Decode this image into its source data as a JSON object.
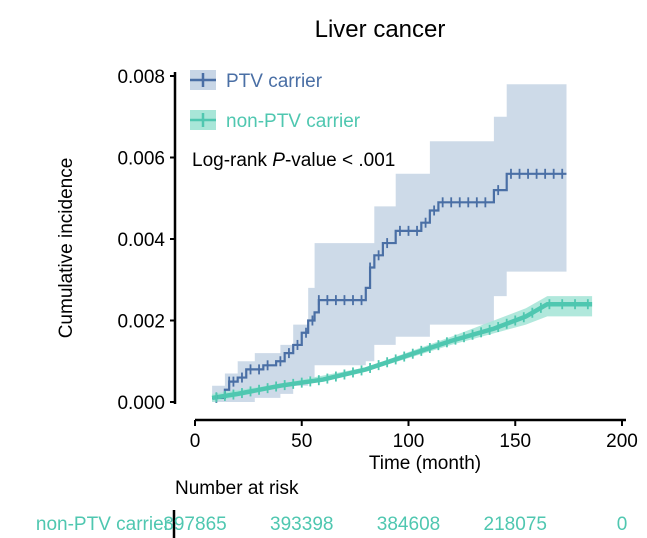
{
  "chart_data": {
    "type": "line",
    "title": "Liver cancer",
    "xlabel": "Time (month)",
    "ylabel": "Cumulative incidence",
    "xlim": [
      0,
      200
    ],
    "ylim": [
      0,
      0.008
    ],
    "x_ticks": [
      0,
      50,
      100,
      150,
      200
    ],
    "x_tick_labels": [
      "0",
      "50",
      "100",
      "150",
      "200"
    ],
    "y_ticks": [
      0,
      0.002,
      0.004,
      0.006,
      0.008
    ],
    "y_tick_labels": [
      "0.000",
      "0.002",
      "0.004",
      "0.006",
      "0.008"
    ],
    "legend_position": "top-left",
    "annotation": {
      "prefix": "Log-rank ",
      "italic": "P",
      "suffix": "-value < .001"
    },
    "series": [
      {
        "name": "PTV carrier",
        "color": "#4a6fa5",
        "band_color": "#c8d6e6",
        "step": [
          [
            8,
            0.0001
          ],
          [
            14,
            0.0003
          ],
          [
            16,
            0.0005
          ],
          [
            20,
            0.0006
          ],
          [
            24,
            0.0008
          ],
          [
            32,
            0.0009
          ],
          [
            38,
            0.001
          ],
          [
            42,
            0.0012
          ],
          [
            46,
            0.0014
          ],
          [
            50,
            0.0017
          ],
          [
            53,
            0.002
          ],
          [
            56,
            0.0022
          ],
          [
            58,
            0.0025
          ],
          [
            80,
            0.0028
          ],
          [
            82,
            0.0033
          ],
          [
            84,
            0.0036
          ],
          [
            88,
            0.0039
          ],
          [
            94,
            0.0042
          ],
          [
            106,
            0.0044
          ],
          [
            110,
            0.0047
          ],
          [
            114,
            0.0049
          ],
          [
            140,
            0.0052
          ],
          [
            146,
            0.0056
          ],
          [
            174,
            0.0056
          ]
        ],
        "band": [
          [
            8,
            0,
            0.0004
          ],
          [
            14,
            0,
            0.0007
          ],
          [
            20,
            0,
            0.001
          ],
          [
            28,
            0.0001,
            0.0012
          ],
          [
            40,
            0.0002,
            0.0014
          ],
          [
            46,
            0.0004,
            0.0019
          ],
          [
            53,
            0.0006,
            0.0028
          ],
          [
            56,
            0.0009,
            0.0039
          ],
          [
            80,
            0.001,
            0.0039
          ],
          [
            84,
            0.0014,
            0.0048
          ],
          [
            94,
            0.0016,
            0.0056
          ],
          [
            110,
            0.0019,
            0.0064
          ],
          [
            140,
            0.0026,
            0.007
          ],
          [
            146,
            0.0032,
            0.0078
          ],
          [
            174,
            0.0032,
            0.008
          ]
        ],
        "censor_x": [
          10,
          16,
          18,
          22,
          26,
          30,
          34,
          40,
          44,
          48,
          52,
          55,
          58,
          62,
          66,
          70,
          74,
          78,
          82,
          86,
          90,
          96,
          100,
          104,
          108,
          112,
          116,
          120,
          124,
          128,
          132,
          136,
          142,
          148,
          152,
          156,
          160,
          164,
          168,
          172
        ]
      },
      {
        "name": "non-PTV carrier",
        "color": "#4fc7b0",
        "band_color": "#a8e6d8",
        "curve": [
          [
            8,
            0.0001
          ],
          [
            20,
            0.0002
          ],
          [
            40,
            0.0004
          ],
          [
            60,
            0.00055
          ],
          [
            80,
            0.0008
          ],
          [
            100,
            0.00115
          ],
          [
            120,
            0.0015
          ],
          [
            140,
            0.0018
          ],
          [
            155,
            0.0021
          ],
          [
            165,
            0.0024
          ],
          [
            186,
            0.0024
          ]
        ],
        "band": [
          [
            8,
            0,
            0.0002
          ],
          [
            40,
            0.00035,
            0.00045
          ],
          [
            80,
            0.00075,
            0.00085
          ],
          [
            120,
            0.0014,
            0.0016
          ],
          [
            155,
            0.0019,
            0.0023
          ],
          [
            165,
            0.0021,
            0.0026
          ],
          [
            186,
            0.0021,
            0.0026
          ]
        ],
        "censor_x": [
          10,
          14,
          18,
          22,
          26,
          30,
          34,
          38,
          42,
          46,
          50,
          54,
          58,
          62,
          66,
          70,
          74,
          78,
          82,
          86,
          90,
          94,
          98,
          102,
          106,
          110,
          114,
          118,
          122,
          126,
          130,
          134,
          138,
          142,
          146,
          150,
          154,
          158,
          162,
          166,
          172,
          178,
          184
        ]
      }
    ],
    "risk_table": {
      "title": "Number at risk",
      "rows": [
        {
          "label": "non-PTV carrier",
          "times": [
            0,
            50,
            100,
            150,
            200
          ],
          "values": [
            "397865",
            "393398",
            "384608",
            "218075",
            "0"
          ]
        }
      ]
    }
  }
}
